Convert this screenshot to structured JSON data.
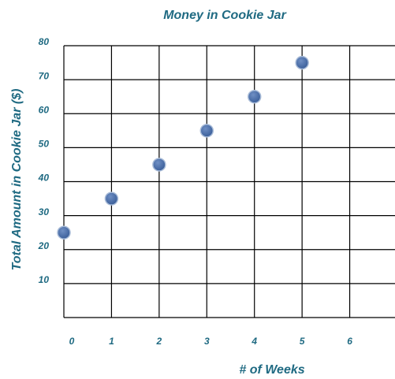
{
  "chart_data": {
    "type": "scatter",
    "title": "Money in Cookie Jar",
    "x_label": "# of Weeks",
    "y_label": "Total Amount in Cookie Jar ($)",
    "x": [
      0,
      1,
      2,
      3,
      4,
      5
    ],
    "values": [
      25,
      35,
      45,
      55,
      65,
      75
    ],
    "color": "#3b5f9a",
    "xlim": [
      0,
      7
    ],
    "xticks": [
      0,
      1,
      2,
      3,
      4,
      5,
      6,
      7
    ],
    "ylim": [
      0,
      80
    ],
    "yticks": [
      10,
      20,
      30,
      40,
      50,
      60,
      70,
      80
    ],
    "grid": true
  }
}
